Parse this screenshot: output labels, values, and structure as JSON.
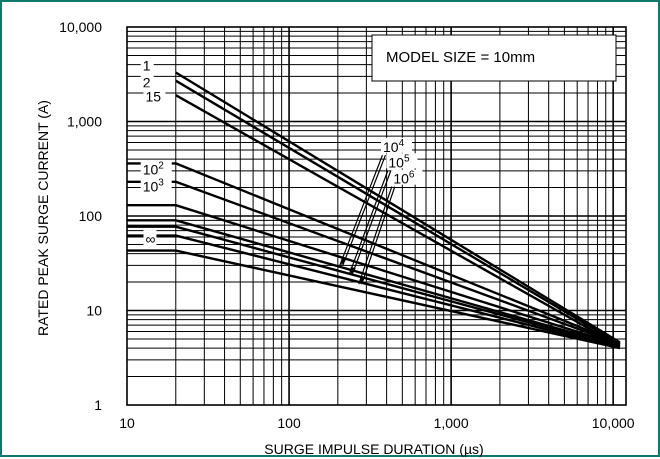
{
  "chart_data": {
    "type": "line",
    "title": "",
    "xlabel": "SURGE IMPULSE DURATION (µs)",
    "ylabel": "RATED PEAK SURGE CURRENT (A)",
    "xscale": "log",
    "yscale": "log",
    "xlim": [
      10,
      12000
    ],
    "ylim": [
      1,
      10000
    ],
    "grid": true,
    "legend": "none",
    "annotation": "MODEL SIZE = 10mm",
    "x_tick_labels": [
      {
        "value": 10,
        "label": "10"
      },
      {
        "value": 100,
        "label": "100"
      },
      {
        "value": 1000,
        "label": "1,000"
      },
      {
        "value": 10000,
        "label": "10,000"
      }
    ],
    "y_tick_labels": [
      {
        "value": 1,
        "label": "1"
      },
      {
        "value": 10,
        "label": "10"
      },
      {
        "value": 100,
        "label": "100"
      },
      {
        "value": 1000,
        "label": "1,000"
      },
      {
        "value": 10000,
        "label": "10,000"
      }
    ],
    "series_labels": [
      {
        "text": "1",
        "x": 12.5,
        "y": 3900
      },
      {
        "text": "2",
        "x": 12.5,
        "y": 2600
      },
      {
        "text": "15",
        "x": 13,
        "y": 1850
      },
      {
        "text": "10",
        "sup": "2",
        "x": 12.5,
        "y": 310
      },
      {
        "text": "10",
        "sup": "3",
        "x": 12.5,
        "y": 205
      },
      {
        "text": "∞",
        "x": 13,
        "y": 57
      },
      {
        "text": "10",
        "sup": "4",
        "x": 380,
        "y": 540
      },
      {
        "text": "10",
        "sup": "5",
        "x": 410,
        "y": 370
      },
      {
        "text": "10",
        "sup": "6",
        "x": 440,
        "y": 248
      }
    ],
    "series": [
      {
        "name": "1",
        "x": [
          20,
          11000
        ],
        "y": [
          3300,
          4.6
        ]
      },
      {
        "name": "2",
        "x": [
          20,
          11000
        ],
        "y": [
          2700,
          4.4
        ]
      },
      {
        "name": "15",
        "x": [
          20,
          11000
        ],
        "y": [
          1900,
          4.2
        ]
      },
      {
        "name": "10²",
        "x": [
          10,
          20,
          11000
        ],
        "y": [
          360,
          360,
          4.5
        ]
      },
      {
        "name": "10³",
        "x": [
          10,
          20,
          11000
        ],
        "y": [
          230,
          230,
          4.4
        ]
      },
      {
        "name": "10⁴",
        "x": [
          10,
          20,
          11000
        ],
        "y": [
          130,
          130,
          4.3
        ]
      },
      {
        "name": "",
        "x": [
          10,
          20,
          11000
        ],
        "y": [
          90,
          90,
          4.2
        ]
      },
      {
        "name": "10⁵",
        "x": [
          10,
          20,
          11000
        ],
        "y": [
          77,
          77,
          4.1
        ]
      },
      {
        "name": "10⁶",
        "x": [
          10,
          20,
          11000
        ],
        "y": [
          62,
          62,
          4.0
        ]
      },
      {
        "name": "∞",
        "x": [
          10,
          20,
          11000
        ],
        "y": [
          43,
          43,
          4.0
        ]
      }
    ],
    "callouts": [
      {
        "label": "10⁴",
        "from": [
          385,
          440
        ],
        "to": [
          210,
          30
        ]
      },
      {
        "label": "10⁵",
        "from": [
          415,
          300
        ],
        "to": [
          240,
          24
        ]
      },
      {
        "label": "10⁶",
        "from": [
          440,
          205
        ],
        "to": [
          275,
          19
        ]
      }
    ]
  }
}
